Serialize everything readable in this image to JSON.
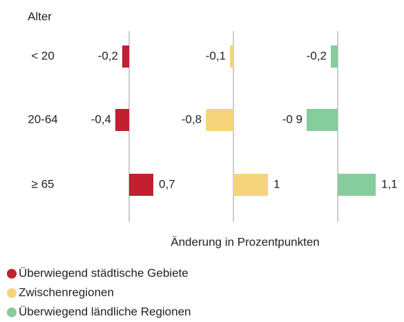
{
  "chart_data": {
    "type": "bar",
    "orientation": "horizontal",
    "y_label": "Alter",
    "x_label": "Änderung in Prozentpunkten",
    "categories": [
      "< 20",
      "20-64",
      "≥ 65"
    ],
    "xlim": [
      -1.5,
      1.5
    ],
    "series": [
      {
        "name": "Überwiegend städtische Gebiete",
        "color": "#c0202f",
        "values": [
          -0.2,
          -0.4,
          0.7
        ],
        "value_labels": [
          "-0,2",
          "-0,4",
          "0,7"
        ]
      },
      {
        "name": "Zwischenregionen",
        "color": "#f5d47c",
        "values": [
          -0.1,
          -0.8,
          1
        ],
        "value_labels": [
          "-0,1",
          "-0,8",
          "1"
        ]
      },
      {
        "name": "Überwiegend ländliche Regionen",
        "color": "#86cc9c",
        "values": [
          -0.2,
          -0.9,
          1.1
        ],
        "value_labels": [
          "-0,2",
          "-0 9",
          "1,1"
        ]
      }
    ]
  }
}
